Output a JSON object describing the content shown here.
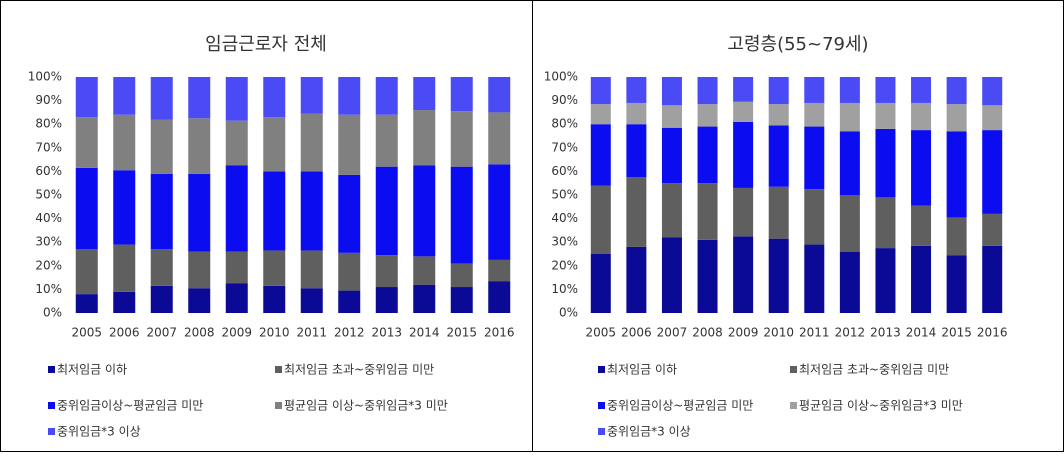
{
  "chart_data": [
    {
      "type": "bar",
      "stacked": true,
      "title": "임금근로자 전체",
      "categories": [
        "2005",
        "2006",
        "2007",
        "2008",
        "2009",
        "2010",
        "2011",
        "2012",
        "2013",
        "2014",
        "2015",
        "2016"
      ],
      "ylim": [
        0,
        100
      ],
      "yticks": [
        {
          "value": 0,
          "label": "0%"
        },
        {
          "value": 10,
          "label": "10%"
        },
        {
          "value": 20,
          "label": "20%"
        },
        {
          "value": 30,
          "label": "30%"
        },
        {
          "value": 40,
          "label": "40%"
        },
        {
          "value": 50,
          "label": "50%"
        },
        {
          "value": 60,
          "label": "60%"
        },
        {
          "value": 70,
          "label": "70%"
        },
        {
          "value": 80,
          "label": "80%"
        },
        {
          "value": 90,
          "label": "90%"
        },
        {
          "value": 100,
          "label": "100%"
        }
      ],
      "series": [
        {
          "name": "최저임금 이하",
          "color": "#0a0a96",
          "values": [
            8,
            9,
            11.5,
            10.5,
            12.5,
            11.5,
            10.5,
            9.5,
            11,
            12,
            11,
            13.5
          ]
        },
        {
          "name": "최저임금 초과~중위임금 미만",
          "color": "#5f5f5f",
          "values": [
            19,
            20,
            15.5,
            15.5,
            13.5,
            15,
            16,
            16,
            13.5,
            12,
            10,
            9
          ]
        },
        {
          "name": "중위임금이상~평균임금 미만",
          "color": "#0c0cf0",
          "values": [
            34.5,
            31.5,
            32,
            33,
            36.5,
            33.5,
            33.5,
            33,
            37.5,
            38.5,
            41,
            40.5
          ]
        },
        {
          "name": "평균임금 이상~중위임금*3 미만",
          "color": "#808080",
          "values": [
            21.5,
            23.5,
            23,
            23.5,
            19,
            23,
            24.5,
            25.5,
            22,
            23.5,
            23.5,
            22
          ]
        },
        {
          "name": "중위임금*3 이상",
          "color": "#4b4bf5",
          "values": [
            17,
            16,
            18,
            17.5,
            18.5,
            17,
            15.5,
            16,
            16,
            14,
            14.5,
            15
          ]
        }
      ]
    },
    {
      "type": "bar",
      "stacked": true,
      "title": "고령층(55~79세)",
      "categories": [
        "2005",
        "2006",
        "2007",
        "2008",
        "2009",
        "2010",
        "2011",
        "2012",
        "2013",
        "2014",
        "2015",
        "2016"
      ],
      "ylim": [
        0,
        100
      ],
      "yticks": [
        {
          "value": 0,
          "label": "0%"
        },
        {
          "value": 10,
          "label": "10%"
        },
        {
          "value": 20,
          "label": "20%"
        },
        {
          "value": 30,
          "label": "30%"
        },
        {
          "value": 40,
          "label": "40%"
        },
        {
          "value": 50,
          "label": "50%"
        },
        {
          "value": 60,
          "label": "60%"
        },
        {
          "value": 70,
          "label": "70%"
        },
        {
          "value": 80,
          "label": "80%"
        },
        {
          "value": 90,
          "label": "90%"
        },
        {
          "value": 100,
          "label": "100%"
        }
      ],
      "series": [
        {
          "name": "최저임금 이하",
          "color": "#0a0a96",
          "values": [
            25,
            28,
            32,
            31,
            32.5,
            31.5,
            29,
            26,
            27.5,
            28.5,
            24.5,
            28.5
          ]
        },
        {
          "name": "최저임금 초과~중위임금 미만",
          "color": "#5f5f5f",
          "values": [
            29,
            29.5,
            23,
            24,
            20.5,
            22,
            23.5,
            24,
            21.5,
            17,
            16,
            13.5
          ]
        },
        {
          "name": "중위임금이상~평균임금 미만",
          "color": "#0c0cf0",
          "values": [
            26,
            22.5,
            23.5,
            24,
            28,
            26,
            26.5,
            27,
            29,
            32,
            36.5,
            35.5
          ]
        },
        {
          "name": "평균임금 이상~중위임금*3 미만",
          "color": "#a0a0a0",
          "values": [
            8.5,
            9,
            9.5,
            9.5,
            8.5,
            9,
            10,
            12,
            11,
            11.5,
            11.5,
            10.5
          ]
        },
        {
          "name": "중위임금*3 이상",
          "color": "#4b4bf5",
          "values": [
            11.5,
            11,
            12,
            11.5,
            10.5,
            11.5,
            11,
            11,
            11,
            11,
            11.5,
            12
          ]
        }
      ]
    }
  ]
}
